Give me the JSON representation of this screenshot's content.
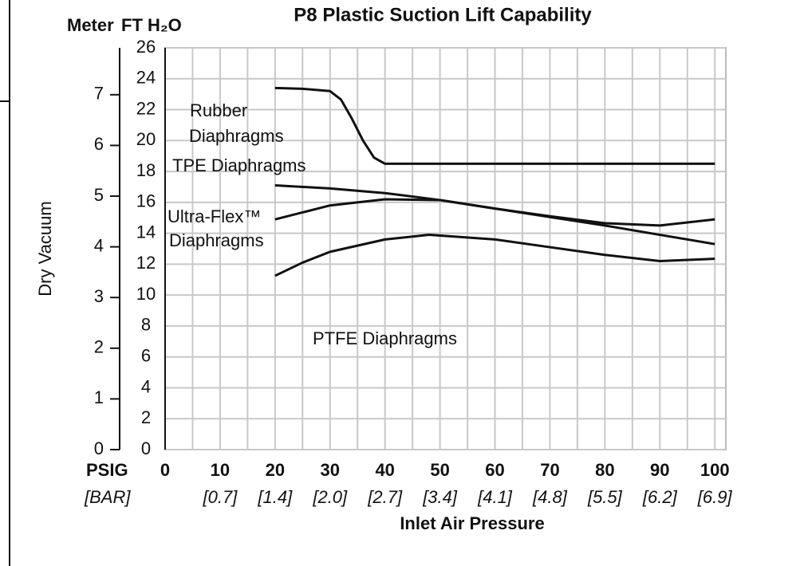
{
  "chart_data": {
    "type": "line",
    "title": "P8 Plastic Suction Lift Capability",
    "ylabel": "Dry Vacuum",
    "y_unit_label": "FT H₂O",
    "y2_unit_label": "Meter",
    "xlabel": "Inlet Air Pressure",
    "x_unit_label": "PSIG",
    "x2_unit_label": "[BAR]",
    "xlim": [
      0,
      102
    ],
    "xticks": [
      0,
      10,
      20,
      30,
      40,
      50,
      60,
      70,
      80,
      90,
      100
    ],
    "x2_labels": [
      null,
      "[0.7]",
      "[1.4]",
      "[2.0]",
      "[2.7]",
      "[3.4]",
      "[4.1]",
      "[4.8]",
      "[5.5]",
      "[6.2]",
      "[6.9]"
    ],
    "xgrid": [
      0,
      5,
      10,
      15,
      20,
      25,
      30,
      35,
      40,
      45,
      50,
      55,
      60,
      65,
      70,
      75,
      80,
      85,
      90,
      95,
      100
    ],
    "ylim": [
      0,
      26
    ],
    "yticks": [
      0,
      2,
      4,
      6,
      8,
      10,
      12,
      14,
      16,
      18,
      20,
      22,
      24,
      26
    ],
    "y2lim": [
      0,
      7.925
    ],
    "y2ticks": [
      0,
      1,
      2,
      3,
      4,
      5,
      6,
      7
    ],
    "grid": true,
    "series": [
      {
        "label": [
          "Rubber",
          "Diaphragms"
        ],
        "color": "#111111",
        "x": [
          20,
          25,
          30,
          32,
          34,
          36,
          38,
          40,
          100
        ],
        "values": [
          23.4,
          23.35,
          23.2,
          22.65,
          21.4,
          20.0,
          18.9,
          18.5,
          18.5
        ]
      },
      {
        "label": [
          "TPE Diaphragms"
        ],
        "color": "#111111",
        "x": [
          20,
          30,
          40,
          50,
          60,
          70,
          80,
          90,
          100
        ],
        "values": [
          17.1,
          16.9,
          16.6,
          16.15,
          15.6,
          15.05,
          14.5,
          13.9,
          13.3
        ]
      },
      {
        "label": [
          "Ultra-Flex™",
          "Diaphragms"
        ],
        "color": "#111111",
        "x": [
          20,
          30,
          40,
          50,
          60,
          70,
          80,
          90,
          100
        ],
        "values": [
          14.9,
          15.8,
          16.2,
          16.15,
          15.6,
          15.1,
          14.65,
          14.5,
          14.9
        ]
      },
      {
        "label": [
          "PTFE Diaphragms"
        ],
        "color": "#111111",
        "x": [
          20,
          25,
          30,
          40,
          48,
          60,
          70,
          80,
          90,
          100
        ],
        "values": [
          11.25,
          12.1,
          12.8,
          13.6,
          13.9,
          13.6,
          13.1,
          12.6,
          12.2,
          12.35
        ]
      }
    ]
  }
}
